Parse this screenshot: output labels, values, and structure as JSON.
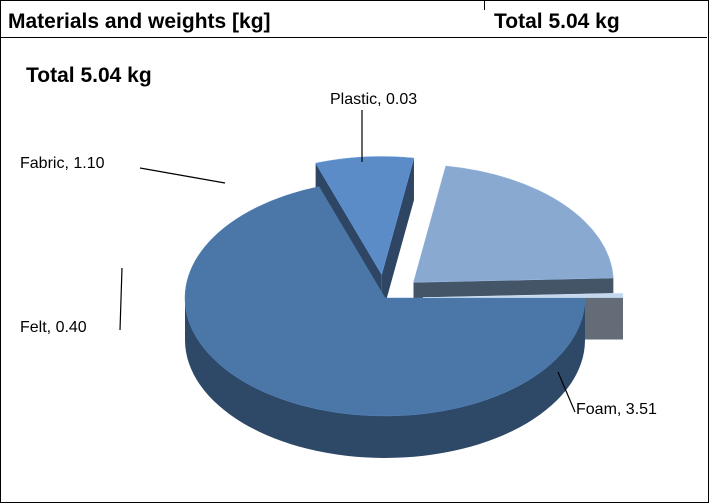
{
  "header": {
    "title": "Materials and weights [kg]",
    "total": "Total 5.04 kg"
  },
  "chart_data": {
    "type": "pie",
    "title": "Total 5.04 kg",
    "unit": "kg",
    "start_angle_deg": 0,
    "direction": "clockwise",
    "slices": [
      {
        "label": "Foam, 3.51",
        "name": "Foam",
        "value": 3.51,
        "color": "#4A76A8",
        "exploded": false
      },
      {
        "label": "Felt, 0.40",
        "name": "Felt",
        "value": 0.4,
        "color": "#5B8CC8",
        "exploded": true
      },
      {
        "label": "Fabric, 1.10",
        "name": "Fabric",
        "value": 1.1,
        "color": "#8AA9D0",
        "exploded": true
      },
      {
        "label": "Plastic, 0.03",
        "name": "Plastic",
        "value": 0.03,
        "color": "#C5D7EE",
        "exploded": true
      }
    ]
  }
}
